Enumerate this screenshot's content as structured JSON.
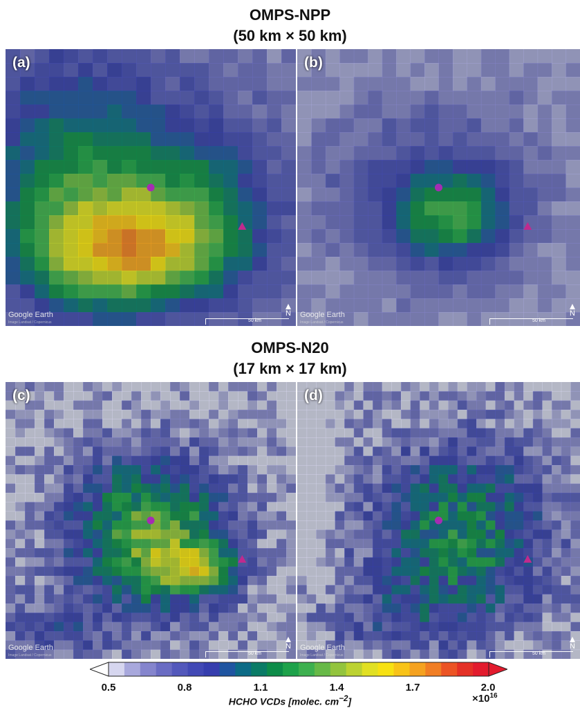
{
  "figure": {
    "row1_title_line1": "OMPS-NPP",
    "row1_title_line2": "(50 km × 50 km)",
    "row2_title_line1": "OMPS-N20",
    "row2_title_line2": "(17 km × 17 km)"
  },
  "panels": [
    {
      "label": "(a)",
      "watermark": "Google Earth",
      "imagery_credit": "Image Landsat / Copernicus",
      "scale_label": "50 km",
      "north": "N"
    },
    {
      "label": "(b)",
      "watermark": "Google Earth",
      "imagery_credit": "Image Landsat / Copernicus",
      "scale_label": "50 km",
      "north": "N"
    },
    {
      "label": "(c)",
      "watermark": "Google Earth",
      "imagery_credit": "Image Landsat / Copernicus",
      "scale_label": "50 km",
      "north": "N"
    },
    {
      "label": "(d)",
      "watermark": "Google Earth",
      "imagery_credit": "Image Landsat / Copernicus",
      "scale_label": "50 km",
      "north": "N"
    }
  ],
  "chart_data": {
    "type": "heatmap",
    "colorbar": {
      "label": "HCHO VCDs [molec. cm",
      "label_exponent": "−2",
      "label_close": "]",
      "vmin": 0.5,
      "vmax": 2.0,
      "ticks": [
        "0.5",
        "0.8",
        "1.1",
        "1.4",
        "1.7",
        "2.0"
      ],
      "multiplier_base": "×10",
      "multiplier_exp": "16",
      "extend": "both",
      "colors": [
        "#d6d6ef",
        "#a8a8dc",
        "#8585cd",
        "#6a6cc3",
        "#5358bb",
        "#4249b5",
        "#363eae",
        "#1f55a1",
        "#0c6b86",
        "#0a7b66",
        "#0d8c49",
        "#1ea24a",
        "#3db04f",
        "#67b947",
        "#93c43d",
        "#bcd231",
        "#e1e023",
        "#f7e112",
        "#f8c318",
        "#f5a220",
        "#f17e24",
        "#ec5424",
        "#e43126",
        "#e21b2d"
      ]
    },
    "markers": [
      {
        "name": "city",
        "shape": "circle",
        "color": "#a52cb3"
      },
      {
        "name": "volcano",
        "shape": "triangle",
        "color": "#c02a8e"
      }
    ]
  }
}
